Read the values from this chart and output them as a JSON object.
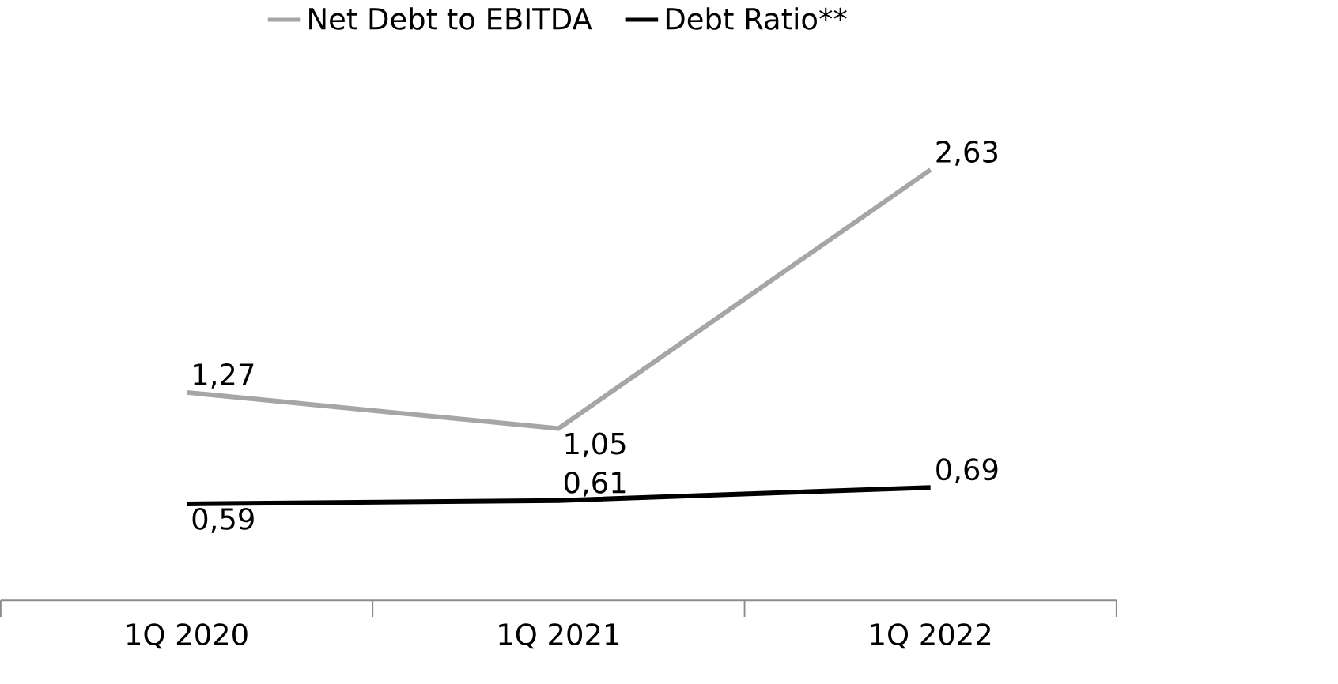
{
  "chart_data": {
    "type": "line",
    "categories": [
      "1Q 2020",
      "1Q 2021",
      "1Q 2022"
    ],
    "series": [
      {
        "name": "Net Debt to EBITDA",
        "color": "#a6a6a6",
        "values": [
          1.27,
          1.05,
          2.63
        ],
        "value_labels": [
          "1,27",
          "1,05",
          "2,63"
        ]
      },
      {
        "name": "Debt Ratio**",
        "color": "#000000",
        "values": [
          0.59,
          0.61,
          0.69
        ],
        "value_labels": [
          "0,59",
          "0,61",
          "0,69"
        ]
      }
    ],
    "legend": "top",
    "marker": "none",
    "line_style": "solid",
    "grid": false
  }
}
